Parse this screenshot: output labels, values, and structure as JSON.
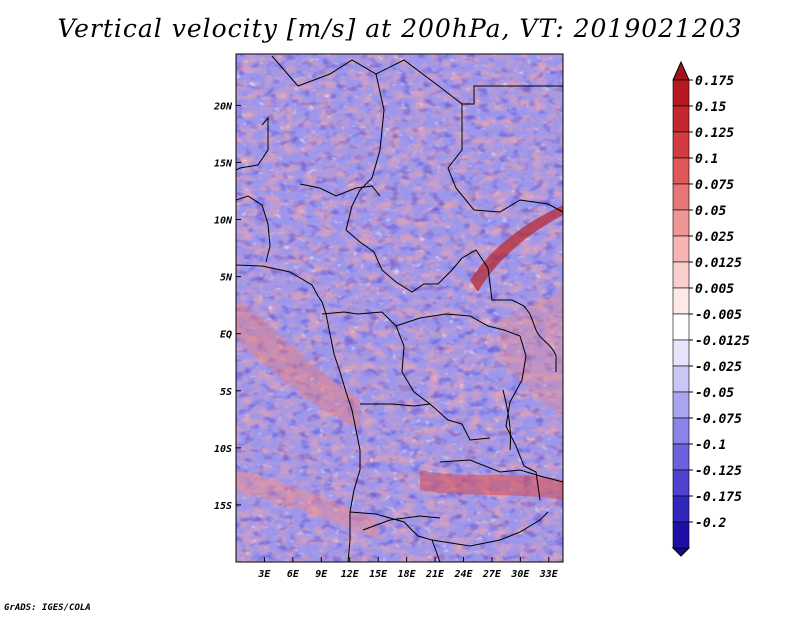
{
  "title": "Vertical velocity [m/s] at 200hPa, VT: 2019021203",
  "credit": "GrADS: IGES/COLA",
  "map": {
    "field": "vertical velocity",
    "units": "m/s",
    "level": "200hPa",
    "valid_time": "2019021203",
    "lon_range": [
      0,
      34.5
    ],
    "lat_range": [
      -20,
      24.5
    ],
    "lon_ticks": [
      {
        "value": 3,
        "label": "3E"
      },
      {
        "value": 6,
        "label": "6E"
      },
      {
        "value": 9,
        "label": "9E"
      },
      {
        "value": 12,
        "label": "12E"
      },
      {
        "value": 15,
        "label": "15E"
      },
      {
        "value": 18,
        "label": "18E"
      },
      {
        "value": 21,
        "label": "21E"
      },
      {
        "value": 24,
        "label": "24E"
      },
      {
        "value": 27,
        "label": "27E"
      },
      {
        "value": 30,
        "label": "30E"
      },
      {
        "value": 33,
        "label": "33E"
      }
    ],
    "lat_ticks": [
      {
        "value": 20,
        "label": "20N"
      },
      {
        "value": 15,
        "label": "15N"
      },
      {
        "value": 10,
        "label": "10N"
      },
      {
        "value": 5,
        "label": "5N"
      },
      {
        "value": 0,
        "label": "EQ"
      },
      {
        "value": -5,
        "label": "5S"
      },
      {
        "value": -10,
        "label": "10S"
      },
      {
        "value": -15,
        "label": "15S"
      }
    ]
  },
  "colorbar": {
    "levels": [
      {
        "label": "0.175",
        "color": "#b51a21"
      },
      {
        "label": "0.15",
        "color": "#c4272d"
      },
      {
        "label": "0.125",
        "color": "#d23c40"
      },
      {
        "label": "0.1",
        "color": "#de5759"
      },
      {
        "label": "0.075",
        "color": "#e87676"
      },
      {
        "label": "0.05",
        "color": "#f09596"
      },
      {
        "label": "0.025",
        "color": "#f6b4b4"
      },
      {
        "label": "0.0125",
        "color": "#fad0cf"
      },
      {
        "label": "0.005",
        "color": "#fde9e8"
      },
      {
        "label": "-0.005",
        "color": "#ffffff"
      },
      {
        "label": "-0.0125",
        "color": "#e6e4fb"
      },
      {
        "label": "-0.025",
        "color": "#cac6f6"
      },
      {
        "label": "-0.05",
        "color": "#aaa5f0"
      },
      {
        "label": "-0.075",
        "color": "#8a83e8"
      },
      {
        "label": "-0.1",
        "color": "#6b62dd"
      },
      {
        "label": "-0.125",
        "color": "#4d43cf"
      },
      {
        "label": "-0.175",
        "color": "#3127bd"
      },
      {
        "label": "-0.2",
        "color": "#1c10a6"
      }
    ],
    "top_cap_color": "#a3121c",
    "bottom_cap_color": "#15088f"
  }
}
